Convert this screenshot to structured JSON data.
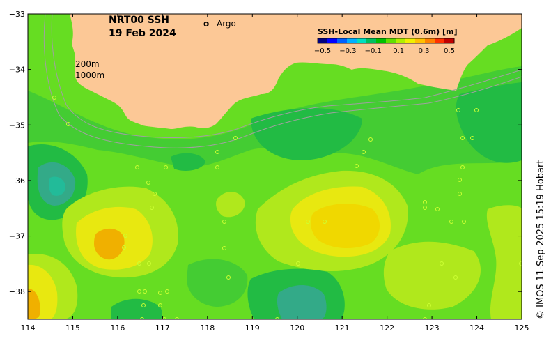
{
  "title": {
    "line1": "NRT00 SSH",
    "line2": "19 Feb 2024"
  },
  "argo": {
    "symbol": "o",
    "label": "Argo",
    "color": "#ff00ff"
  },
  "contours": {
    "label_200": "200m",
    "label_1000": "1000m"
  },
  "colorbar": {
    "title": "SSH-Local Mean MDT (0.6m) [m]",
    "ticks": [
      "−0.5",
      "−0.3",
      "−0.1",
      "0.1",
      "0.3",
      "0.5"
    ],
    "colors": [
      "#000080",
      "#0000ff",
      "#0060ff",
      "#00b0ff",
      "#00e0c0",
      "#00c060",
      "#00c000",
      "#60e000",
      "#b0f000",
      "#f0f000",
      "#ffc000",
      "#ff8000",
      "#ff3000",
      "#c00000"
    ]
  },
  "credit": "© IMOS 11-Sep-2025 15:19 Hobart",
  "axes": {
    "x_ticks": [
      "114",
      "115",
      "116",
      "117",
      "118",
      "119",
      "120",
      "121",
      "122",
      "123",
      "124",
      "125"
    ],
    "y_ticks": [
      "−33",
      "−34",
      "−35",
      "−36",
      "−37",
      "−38"
    ],
    "x_range": [
      114,
      125
    ],
    "y_range": [
      -38.5,
      -33
    ]
  },
  "colors": {
    "land": "#fcc896",
    "sea_base": "#66dd22",
    "green_dark": "#22bb44",
    "green_mid": "#44cc33",
    "teal": "#33aa88",
    "yellow_green": "#b0e81c",
    "yellow": "#e8e810",
    "orange": "#f0b000",
    "isobath": "#a0a0a0"
  }
}
